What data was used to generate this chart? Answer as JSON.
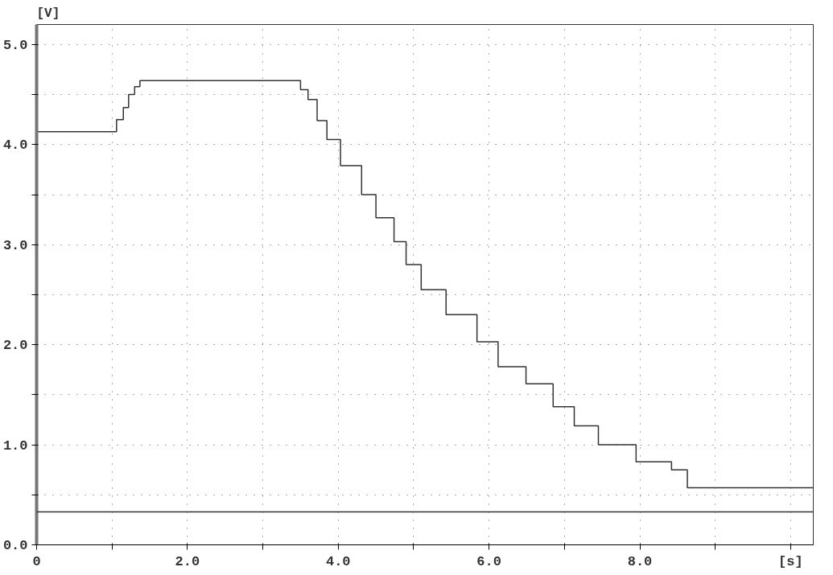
{
  "chart_data": {
    "type": "step",
    "ylabel": "[V]",
    "x": [
      0,
      1.06,
      1.15,
      1.22,
      1.3,
      1.37,
      3.5,
      3.6,
      3.72,
      3.85,
      4.03,
      4.31,
      4.5,
      4.74,
      4.9,
      5.1,
      5.43,
      5.84,
      6.12,
      6.49,
      6.85,
      7.13,
      7.45,
      7.95,
      8.42,
      8.63,
      10.3
    ],
    "series": [
      {
        "color": "#333333",
        "values": [
          4.13,
          4.25,
          4.37,
          4.5,
          4.58,
          4.64,
          4.55,
          4.45,
          4.24,
          4.05,
          3.79,
          3.5,
          3.27,
          3.03,
          2.8,
          2.55,
          2.3,
          2.03,
          1.78,
          1.61,
          1.38,
          1.19,
          1.0,
          0.83,
          0.75,
          0.57,
          0.57
        ]
      }
    ],
    "xlim": [
      0,
      10.3
    ],
    "ylim": [
      0,
      5.2
    ],
    "xticks": [
      {
        "value": 0,
        "label": "0"
      },
      {
        "value": 1,
        "label": null
      },
      {
        "value": 2,
        "label": "2.0"
      },
      {
        "value": 3,
        "label": null
      },
      {
        "value": 4,
        "label": "4.0"
      },
      {
        "value": 5,
        "label": null
      },
      {
        "value": 6,
        "label": "6.0"
      },
      {
        "value": 7,
        "label": null
      },
      {
        "value": 8,
        "label": "8.0"
      },
      {
        "value": 9,
        "label": null
      },
      {
        "value": 10,
        "label": "[s]"
      }
    ],
    "yticks": [
      {
        "value": 0,
        "label": "0.0"
      },
      {
        "value": 0.5,
        "label": null
      },
      {
        "value": 1,
        "label": "1.0"
      },
      {
        "value": 1.5,
        "label": null
      },
      {
        "value": 2,
        "label": "2.0"
      },
      {
        "value": 2.5,
        "label": null
      },
      {
        "value": 3,
        "label": "3.0"
      },
      {
        "value": 3.5,
        "label": null
      },
      {
        "value": 4,
        "label": "4.0"
      },
      {
        "value": 4.5,
        "label": null
      },
      {
        "value": 5,
        "label": "5.0"
      }
    ],
    "ref_lines": [
      {
        "axis": "y",
        "value": 0.33,
        "color": "#333333"
      }
    ],
    "grid": true,
    "line_style": "solid"
  }
}
